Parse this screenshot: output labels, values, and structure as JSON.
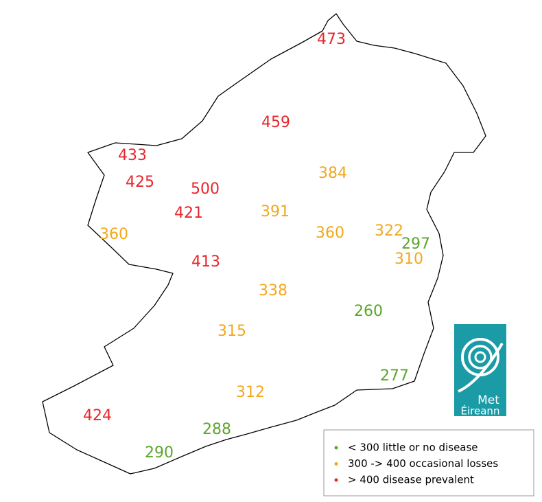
{
  "labels": [
    {
      "value": 473,
      "color": "#e8262a"
    },
    {
      "value": 459,
      "color": "#e8262a"
    },
    {
      "value": 433,
      "color": "#e8262a"
    },
    {
      "value": 425,
      "color": "#e8262a"
    },
    {
      "value": 500,
      "color": "#e8262a"
    },
    {
      "value": 421,
      "color": "#e8262a"
    },
    {
      "value": 391,
      "color": "#f2a81d"
    },
    {
      "value": 384,
      "color": "#f2a81d"
    },
    {
      "value": 360,
      "color": "#f2a81d"
    },
    {
      "value": 322,
      "color": "#f2a81d"
    },
    {
      "value": 297,
      "color": "#5ba52b"
    },
    {
      "value": 310,
      "color": "#f2a81d"
    },
    {
      "value": 360,
      "color": "#f2a81d"
    },
    {
      "value": 413,
      "color": "#e8262a"
    },
    {
      "value": 338,
      "color": "#f2a81d"
    },
    {
      "value": 260,
      "color": "#5ba52b"
    },
    {
      "value": 315,
      "color": "#f2a81d"
    },
    {
      "value": 277,
      "color": "#5ba52b"
    },
    {
      "value": 312,
      "color": "#f2a81d"
    },
    {
      "value": 424,
      "color": "#e8262a"
    },
    {
      "value": 288,
      "color": "#5ba52b"
    },
    {
      "value": 290,
      "color": "#5ba52b"
    }
  ],
  "legend": [
    {
      "label": "< 300  little or no disease",
      "color": "#5ba52b"
    },
    {
      "label": "300 -> 400  occasional losses",
      "color": "#f2a81d"
    },
    {
      "label": "> 400  disease prevalent",
      "color": "#e8262a"
    }
  ],
  "logo": {
    "line1": "Met",
    "line2": "Éireann"
  }
}
